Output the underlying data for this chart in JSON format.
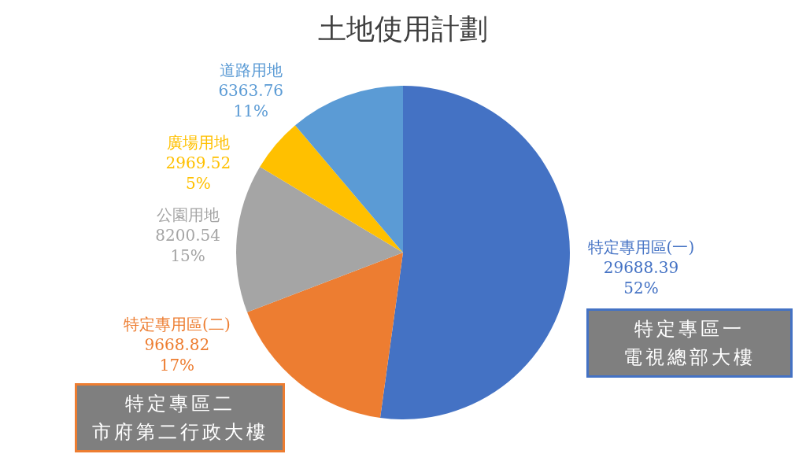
{
  "chart_data": {
    "type": "pie",
    "title": "土地使用計劃",
    "categories": [
      "特定專用區(一)",
      "特定專用區(二)",
      "公園用地",
      "廣場用地",
      "道路用地"
    ],
    "values": [
      29688.39,
      9668.82,
      8200.54,
      2969.52,
      6363.76
    ],
    "colors": [
      "#4472c4",
      "#ed7d31",
      "#a5a5a5",
      "#ffc000",
      "#5b9bd5"
    ],
    "value_labels": [
      "29688.39\n52%",
      "9668.82\n17%",
      "8200.54\n15%",
      "2969.52\n5%",
      "6363.76\n11%"
    ],
    "annotations": [
      "特定專區一",
      "電視總部大樓",
      "特定專區二",
      "市府第二行政大樓"
    ]
  }
}
